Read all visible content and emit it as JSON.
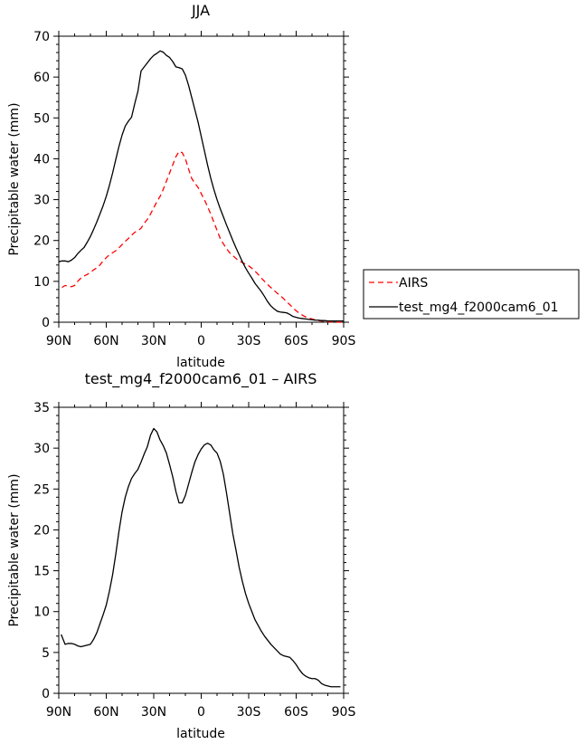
{
  "chart_data": [
    {
      "type": "line",
      "title": "JJA",
      "xlabel": "latitude",
      "ylabel": "Precipitable water (mm)",
      "xlim": [
        90,
        -90
      ],
      "ylim": [
        0,
        70
      ],
      "xticks": [
        90,
        60,
        30,
        0,
        -30,
        -60,
        -90
      ],
      "xticklabels": [
        "90N",
        "60N",
        "30N",
        "0",
        "30S",
        "60S",
        "90S"
      ],
      "yticks": [
        0,
        10,
        20,
        30,
        40,
        50,
        60,
        70
      ],
      "yticklabels": [
        "0",
        "10",
        "20",
        "30",
        "40",
        "50",
        "60",
        "70"
      ],
      "legend": {
        "placement": "right",
        "entries": [
          {
            "label": "AIRS",
            "color": "#ff0000",
            "dash": "dashed"
          },
          {
            "label": "test_mg4_f2000cam6_01",
            "color": "#000000",
            "dash": "solid"
          }
        ]
      },
      "series": [
        {
          "name": "AIRS",
          "color": "#ff0000",
          "dash": "dashed",
          "x": [
            88,
            86,
            84,
            82,
            80,
            78,
            76,
            74,
            72,
            70,
            68,
            66,
            64,
            62,
            60,
            58,
            56,
            54,
            52,
            50,
            48,
            46,
            44,
            42,
            40,
            38,
            36,
            34,
            32,
            30,
            28,
            26,
            24,
            22,
            20,
            18,
            16,
            14,
            12,
            10,
            8,
            6,
            4,
            2,
            0,
            -2,
            -4,
            -6,
            -8,
            -10,
            -12,
            -14,
            -16,
            -18,
            -20,
            -22,
            -24,
            -26,
            -28,
            -30,
            -32,
            -34,
            -36,
            -38,
            -40,
            -42,
            -44,
            -46,
            -48,
            -50,
            -52,
            -54,
            -56,
            -58,
            -60,
            -62,
            -64,
            -66,
            -68,
            -70,
            -72,
            -74,
            -76,
            -78,
            -80,
            -82,
            -84,
            -86,
            -88,
            -90
          ],
          "values": [
            8.5,
            9.0,
            8.8,
            8.7,
            9.0,
            10.0,
            10.8,
            11.3,
            11.7,
            12.2,
            12.8,
            13.3,
            14.0,
            15.0,
            15.8,
            16.5,
            17.0,
            17.5,
            18.2,
            19.0,
            19.8,
            20.5,
            21.3,
            22.0,
            22.4,
            23.0,
            24.2,
            25.2,
            26.5,
            28.0,
            29.5,
            30.8,
            32.5,
            34.5,
            36.5,
            38.5,
            40.5,
            41.8,
            41.5,
            40.0,
            37.5,
            35.2,
            34.0,
            33.0,
            31.5,
            30.0,
            28.3,
            26.5,
            24.5,
            22.5,
            20.5,
            19.2,
            18.0,
            17.0,
            16.3,
            15.6,
            15.0,
            14.6,
            14.2,
            13.8,
            13.2,
            12.5,
            11.7,
            10.8,
            10.0,
            9.2,
            8.5,
            7.8,
            7.1,
            6.5,
            5.8,
            5.0,
            4.3,
            3.5,
            2.8,
            2.2,
            1.7,
            1.3,
            1.0,
            0.8,
            0.6,
            0.4,
            0.3,
            0.2,
            0.1,
            0.1,
            0.0,
            0.0,
            0.0,
            0.0
          ]
        },
        {
          "name": "test_mg4_f2000cam6_01",
          "color": "#000000",
          "dash": "solid",
          "x": [
            90,
            88,
            86,
            84,
            82,
            80,
            78,
            76,
            74,
            72,
            70,
            68,
            66,
            64,
            62,
            60,
            58,
            56,
            54,
            52,
            50,
            48,
            46,
            44,
            42,
            40,
            38,
            36,
            34,
            32,
            30,
            28,
            26,
            24,
            22,
            20,
            18,
            16,
            14,
            12,
            10,
            8,
            6,
            4,
            2,
            0,
            -2,
            -4,
            -6,
            -8,
            -10,
            -12,
            -14,
            -16,
            -18,
            -20,
            -22,
            -24,
            -26,
            -28,
            -30,
            -32,
            -34,
            -36,
            -38,
            -40,
            -42,
            -44,
            -46,
            -48,
            -50,
            -52,
            -54,
            -56,
            -58,
            -60,
            -62,
            -64,
            -66,
            -68,
            -70,
            -72,
            -74,
            -76,
            -78,
            -80,
            -82,
            -84,
            -86,
            -88,
            -90
          ],
          "values": [
            14.8,
            15.0,
            15.0,
            14.8,
            15.2,
            15.8,
            16.8,
            17.6,
            18.3,
            19.6,
            21.0,
            22.7,
            24.5,
            26.5,
            28.5,
            30.8,
            33.5,
            36.5,
            39.8,
            43.0,
            45.8,
            48.0,
            49.2,
            50.2,
            53.5,
            56.5,
            61.5,
            62.5,
            63.5,
            64.5,
            65.3,
            65.8,
            66.4,
            66.1,
            65.3,
            64.8,
            63.8,
            62.5,
            62.3,
            62.0,
            60.5,
            58.0,
            55.0,
            52.0,
            49.0,
            45.5,
            42.0,
            38.5,
            35.3,
            32.5,
            30.0,
            27.8,
            25.8,
            23.8,
            21.9,
            20.0,
            18.2,
            16.5,
            14.8,
            13.3,
            12.0,
            10.8,
            9.5,
            8.5,
            7.5,
            6.3,
            5.0,
            4.0,
            3.3,
            2.7,
            2.5,
            2.4,
            2.3,
            1.9,
            1.4,
            1.2,
            1.0,
            0.9,
            0.8,
            0.7,
            0.6,
            0.5,
            0.5,
            0.4,
            0.4,
            0.3,
            0.3,
            0.3,
            0.3,
            0.3,
            0.3
          ]
        }
      ]
    },
    {
      "type": "line",
      "title": "test_mg4_f2000cam6_01 – AIRS",
      "xlabel": "latitude",
      "ylabel": "Precipitable water (mm)",
      "xlim": [
        90,
        -90
      ],
      "ylim": [
        0,
        35
      ],
      "xticks": [
        90,
        60,
        30,
        0,
        -30,
        -60,
        -90
      ],
      "xticklabels": [
        "90N",
        "60N",
        "30N",
        "0",
        "30S",
        "60S",
        "90S"
      ],
      "yticks": [
        0,
        5,
        10,
        15,
        20,
        25,
        30,
        35
      ],
      "yticklabels": [
        "0",
        "5",
        "10",
        "15",
        "20",
        "25",
        "30",
        "35"
      ],
      "series": [
        {
          "color": "#000000",
          "dash": "solid",
          "x": [
            88.5,
            86,
            84,
            82,
            80,
            78,
            76,
            74,
            72,
            70,
            68,
            66,
            64,
            62,
            60,
            58,
            56,
            54,
            52,
            50,
            48,
            46,
            44,
            42,
            40,
            38,
            36,
            34,
            32,
            30,
            28,
            26,
            24,
            22,
            20,
            18,
            16,
            14,
            12,
            10,
            8,
            6,
            4,
            2,
            0,
            -2,
            -4,
            -6,
            -8,
            -10,
            -12,
            -14,
            -16,
            -18,
            -20,
            -22,
            -24,
            -26,
            -28,
            -30,
            -32,
            -34,
            -36,
            -38,
            -40,
            -42,
            -44,
            -46,
            -48,
            -50,
            -52,
            -54,
            -56,
            -58,
            -60,
            -62,
            -64,
            -66,
            -68,
            -70,
            -72,
            -74,
            -76,
            -78,
            -80,
            -82,
            -84,
            -86,
            -88
          ],
          "values": [
            7.2,
            6.0,
            6.1,
            6.1,
            6.0,
            5.8,
            5.7,
            5.8,
            5.9,
            6.0,
            6.6,
            7.4,
            8.5,
            9.6,
            10.8,
            12.5,
            14.5,
            17.0,
            19.8,
            22.2,
            24.0,
            25.3,
            26.3,
            26.9,
            27.4,
            28.3,
            29.3,
            30.2,
            31.6,
            32.4,
            32.0,
            31.0,
            30.3,
            29.4,
            28.0,
            26.5,
            24.7,
            23.3,
            23.3,
            24.2,
            25.6,
            27.0,
            28.3,
            29.2,
            29.9,
            30.4,
            30.6,
            30.4,
            29.8,
            29.4,
            28.4,
            26.8,
            24.5,
            22.0,
            19.5,
            17.5,
            15.4,
            13.7,
            12.2,
            11.0,
            10.0,
            9.0,
            8.3,
            7.6,
            7.0,
            6.5,
            6.0,
            5.6,
            5.2,
            4.8,
            4.6,
            4.5,
            4.4,
            4.0,
            3.5,
            2.9,
            2.4,
            2.1,
            1.9,
            1.8,
            1.8,
            1.6,
            1.2,
            1.0,
            0.9,
            0.8,
            0.8,
            0.8,
            0.8
          ]
        }
      ]
    }
  ]
}
